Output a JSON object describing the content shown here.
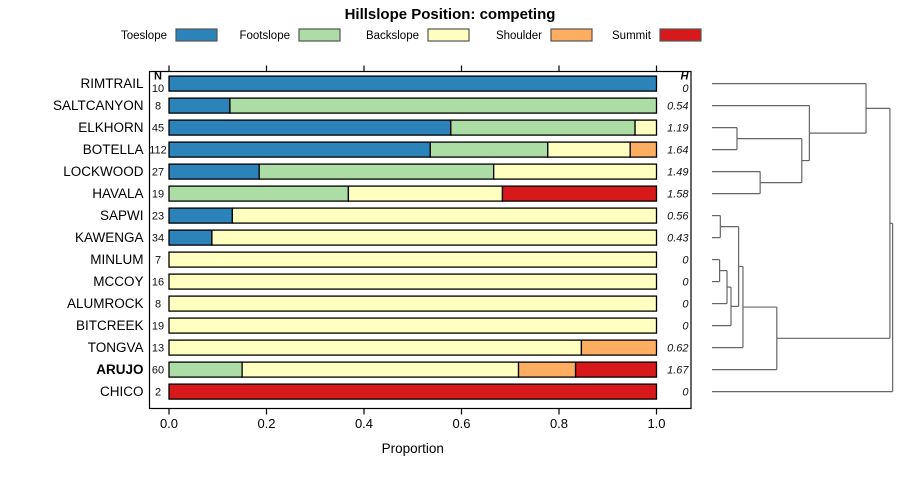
{
  "chart_data": {
    "type": "bar",
    "variant": "horizontal_stacked_proportions_with_dendrogram",
    "title": "Hillslope Position: competing",
    "xlabel": "Proportion",
    "xlim": [
      0,
      1
    ],
    "x_ticks": [
      "0.0",
      "0.2",
      "0.4",
      "0.6",
      "0.8",
      "1.0"
    ],
    "x_tick_values": [
      0.0,
      0.2,
      0.4,
      0.6,
      0.8,
      1.0
    ],
    "grid": false,
    "legend": {
      "position": "top",
      "entries": [
        {
          "label": "Toeslope",
          "color": "#2B83BA"
        },
        {
          "label": "Footslope",
          "color": "#ABDDA4"
        },
        {
          "label": "Backslope",
          "color": "#FFFFBF"
        },
        {
          "label": "Shoulder",
          "color": "#FDAE61"
        },
        {
          "label": "Summit",
          "color": "#D7191C"
        }
      ]
    },
    "columns": {
      "n_header": "N",
      "h_header": "H"
    },
    "categories": [
      "Toeslope",
      "Footslope",
      "Backslope",
      "Shoulder",
      "Summit"
    ],
    "rows": [
      {
        "name": "RIMTRAIL",
        "n": 10,
        "h": "0",
        "emphasis": false,
        "values": [
          1,
          0,
          0,
          0,
          0
        ]
      },
      {
        "name": "SALTCANYON",
        "n": 8,
        "h": "0.54",
        "emphasis": false,
        "values": [
          0.125,
          0.875,
          0,
          0,
          0
        ]
      },
      {
        "name": "ELKHORN",
        "n": 45,
        "h": "1.19",
        "emphasis": false,
        "values": [
          0.578,
          0.378,
          0.044,
          0,
          0
        ]
      },
      {
        "name": "BOTELLA",
        "n": 112,
        "h": "1.64",
        "emphasis": false,
        "values": [
          0.536,
          0.241,
          0.169,
          0.054,
          0
        ]
      },
      {
        "name": "LOCKWOOD",
        "n": 27,
        "h": "1.49",
        "emphasis": false,
        "values": [
          0.185,
          0.481,
          0.334,
          0,
          0
        ]
      },
      {
        "name": "HAVALA",
        "n": 19,
        "h": "1.58",
        "emphasis": false,
        "values": [
          0,
          0.368,
          0.316,
          0,
          0.316
        ]
      },
      {
        "name": "SAPWI",
        "n": 23,
        "h": "0.56",
        "emphasis": false,
        "values": [
          0.13,
          0,
          0.87,
          0,
          0
        ]
      },
      {
        "name": "KAWENGA",
        "n": 34,
        "h": "0.43",
        "emphasis": false,
        "values": [
          0.088,
          0,
          0.912,
          0,
          0
        ]
      },
      {
        "name": "MINLUM",
        "n": 7,
        "h": "0",
        "emphasis": false,
        "values": [
          0,
          0,
          1,
          0,
          0
        ]
      },
      {
        "name": "MCCOY",
        "n": 16,
        "h": "0",
        "emphasis": false,
        "values": [
          0,
          0,
          1,
          0,
          0
        ]
      },
      {
        "name": "ALUMROCK",
        "n": 8,
        "h": "0",
        "emphasis": false,
        "values": [
          0,
          0,
          1,
          0,
          0
        ]
      },
      {
        "name": "BITCREEK",
        "n": 19,
        "h": "0",
        "emphasis": false,
        "values": [
          0,
          0,
          1,
          0,
          0
        ]
      },
      {
        "name": "TONGVA",
        "n": 13,
        "h": "0.62",
        "emphasis": false,
        "values": [
          0,
          0,
          0.846,
          0.154,
          0
        ]
      },
      {
        "name": "ARUJO",
        "n": 60,
        "h": "1.67",
        "emphasis": true,
        "values": [
          0,
          0.15,
          0.567,
          0.117,
          0.166
        ]
      },
      {
        "name": "CHICO",
        "n": 2,
        "h": "0",
        "emphasis": false,
        "values": [
          0,
          0,
          0,
          0,
          1
        ]
      }
    ],
    "dendrogram": {
      "orientation": "right",
      "tree": {
        "h": 0.998,
        "children": [
          {
            "h": 0.983,
            "children": [
              {
                "h": 0.851,
                "children": [
                  {
                    "leaf": 0
                  },
                  {
                    "h": 0.538,
                    "children": [
                      {
                        "leaf": 1
                      },
                      {
                        "h": 0.496,
                        "children": [
                          {
                            "h": 0.138,
                            "children": [
                              {
                                "leaf": 2
                              },
                              {
                                "leaf": 3
                              }
                            ]
                          },
                          {
                            "h": 0.266,
                            "children": [
                              {
                                "leaf": 4
                              },
                              {
                                "leaf": 5
                              }
                            ]
                          }
                        ]
                      }
                    ]
                  }
                ]
              },
              {
                "h": 0.358,
                "children": [
                  {
                    "h": 0.171,
                    "children": [
                      {
                        "h": 0.147,
                        "children": [
                          {
                            "h": 0.046,
                            "children": [
                              {
                                "leaf": 6
                              },
                              {
                                "leaf": 7
                              }
                            ]
                          },
                          {
                            "h": 0.105,
                            "children": [
                              {
                                "h": 0.083,
                                "children": [
                                  {
                                    "h": 0.042,
                                    "children": [
                                      {
                                        "leaf": 8
                                      },
                                      {
                                        "leaf": 9
                                      }
                                    ]
                                  },
                                  {
                                    "leaf": 10
                                  }
                                ]
                              },
                              {
                                "leaf": 11
                              }
                            ]
                          }
                        ]
                      },
                      {
                        "leaf": 12
                      }
                    ]
                  },
                  {
                    "leaf": 13
                  }
                ]
              }
            ]
          },
          {
            "leaf": 14
          }
        ]
      }
    }
  }
}
